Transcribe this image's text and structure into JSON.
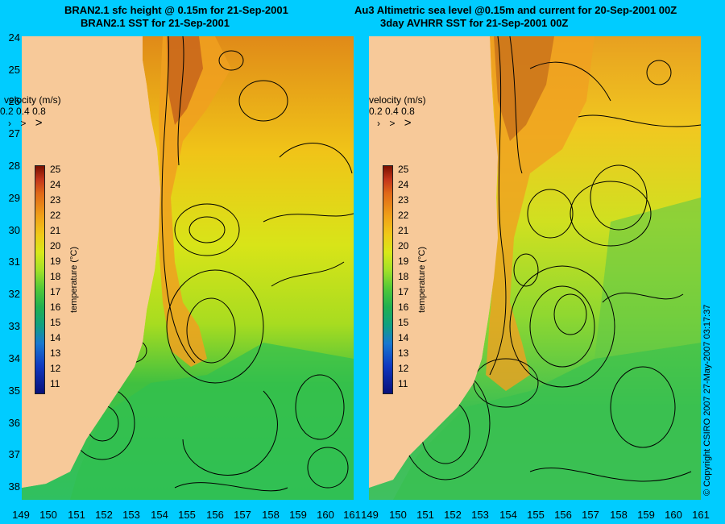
{
  "titles": {
    "left_line1": "BRAN2.1 sfc height @ 0.15m for 21-Sep-2001",
    "left_line2": "BRAN2.1 SST for 21-Sep-2001",
    "right_line1": "Au3 Altimetric sea level  @0.15m and current for 20-Sep-2001 00Z",
    "right_line2": "3day AVHRR SST for 21-Sep-2001 00Z"
  },
  "velocity_legend": {
    "title": "velocity (m/s)",
    "values": [
      "0.2",
      "0.4",
      "0.8"
    ]
  },
  "colorbar": {
    "title": "temperature (°C)",
    "ticks": [
      "25",
      "24",
      "23",
      "22",
      "21",
      "20",
      "19",
      "18",
      "17",
      "16",
      "15",
      "14",
      "13",
      "12",
      "11"
    ],
    "colors": {
      "hot": "#7a1000",
      "warm": "#f0a018",
      "mid": "#a0e028",
      "cool": "#20b050",
      "cold": "#08107a"
    }
  },
  "axes": {
    "latitudes": [
      "24",
      "25",
      "26",
      "27",
      "28",
      "29",
      "30",
      "31",
      "32",
      "33",
      "34",
      "35",
      "36",
      "37",
      "38"
    ],
    "longitudes": [
      "149",
      "150",
      "151",
      "152",
      "153",
      "154",
      "155",
      "156",
      "157",
      "158",
      "159",
      "160",
      "161"
    ],
    "lon_range": [
      149,
      161
    ],
    "lat_range": [
      24,
      38.5
    ]
  },
  "map_colors": {
    "land": "#f7c999",
    "ocean_background": "#00ccff"
  },
  "copyright": "© Copyright CSIRO 2007   27-May-2007 03:17:37"
}
